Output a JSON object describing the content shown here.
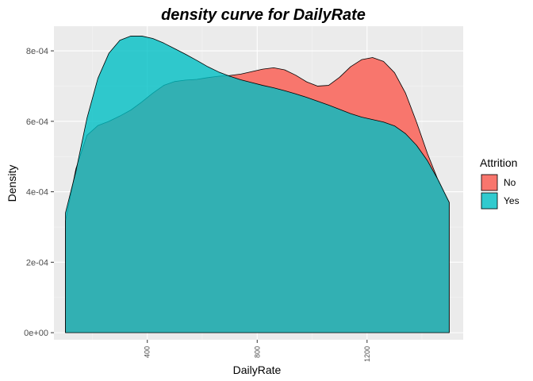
{
  "chart_data": {
    "type": "area",
    "title": "density curve for DailyRate",
    "xlabel": "DailyRate",
    "ylabel": "Density",
    "xlim": [
      60,
      1550
    ],
    "ylim": [
      -2e-05,
      0.00087
    ],
    "x_ticks": [
      {
        "value": 400,
        "label": "400"
      },
      {
        "value": 800,
        "label": "800"
      },
      {
        "value": 1200,
        "label": "1200"
      }
    ],
    "y_ticks": [
      {
        "value": 0,
        "label": "0e+00"
      },
      {
        "value": 0.0002,
        "label": "2e-04"
      },
      {
        "value": 0.0004,
        "label": "4e-04"
      },
      {
        "value": 0.0006,
        "label": "6e-04"
      },
      {
        "value": 0.0008,
        "label": "8e-04"
      }
    ],
    "grid": true,
    "legend": {
      "title": "Attrition",
      "position": "right"
    },
    "series": [
      {
        "name": "No",
        "color": "#F8766D",
        "x": [
          102,
          140,
          180,
          220,
          260,
          300,
          340,
          380,
          420,
          460,
          500,
          540,
          580,
          620,
          660,
          700,
          740,
          780,
          820,
          860,
          900,
          940,
          980,
          1020,
          1060,
          1100,
          1140,
          1180,
          1220,
          1260,
          1300,
          1340,
          1380,
          1420,
          1460,
          1499
        ],
        "y": [
          0.000317,
          0.000465,
          0.00056,
          0.000588,
          0.0006,
          0.000615,
          0.000632,
          0.000655,
          0.00068,
          0.000702,
          0.000713,
          0.000717,
          0.000719,
          0.000724,
          0.000728,
          0.00073,
          0.000734,
          0.000741,
          0.000748,
          0.000752,
          0.000746,
          0.000731,
          0.000712,
          0.0007,
          0.000702,
          0.000725,
          0.000755,
          0.000775,
          0.000781,
          0.00077,
          0.000738,
          0.00068,
          0.000598,
          0.000508,
          0.00043,
          0.00037
        ]
      },
      {
        "name": "Yes",
        "color": "#00BFC4",
        "x": [
          102,
          140,
          180,
          220,
          260,
          300,
          340,
          380,
          420,
          460,
          500,
          540,
          580,
          620,
          660,
          700,
          740,
          780,
          820,
          860,
          900,
          940,
          980,
          1020,
          1060,
          1100,
          1140,
          1180,
          1220,
          1260,
          1300,
          1340,
          1380,
          1420,
          1460,
          1499
        ],
        "y": [
          0.00034,
          0.000458,
          0.000608,
          0.000722,
          0.000793,
          0.00083,
          0.000842,
          0.000842,
          0.000835,
          0.000822,
          0.000806,
          0.00079,
          0.000773,
          0.000755,
          0.00074,
          0.000728,
          0.000718,
          0.00071,
          0.000702,
          0.000695,
          0.000687,
          0.000678,
          0.000668,
          0.000657,
          0.000646,
          0.000634,
          0.000622,
          0.000612,
          0.000605,
          0.000598,
          0.000587,
          0.000565,
          0.000532,
          0.000488,
          0.000432,
          0.00037
        ]
      }
    ]
  }
}
